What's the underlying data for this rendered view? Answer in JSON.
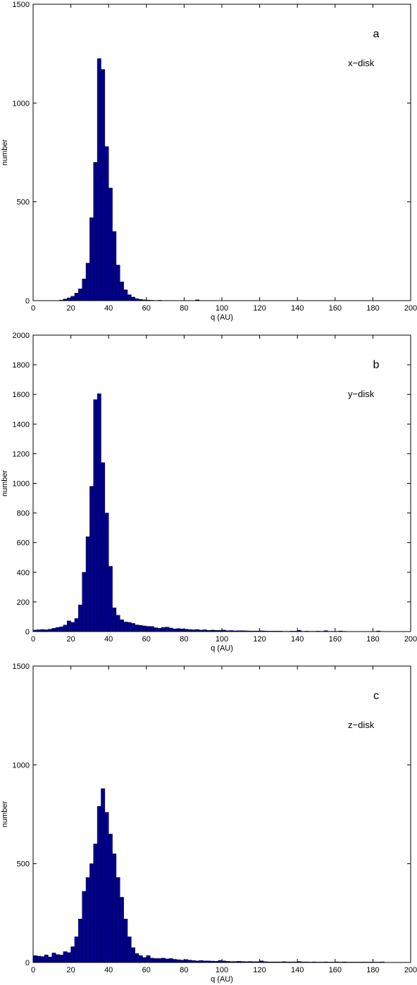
{
  "colors": {
    "bar_fill": "#00008B",
    "bar_edge": "#000033",
    "axis": "#000000",
    "background": "#ffffff"
  },
  "chart_data": [
    {
      "type": "bar",
      "panel_label": "a",
      "annotation": "x−disk",
      "xlabel": "q (AU)",
      "ylabel": "number",
      "xlim": [
        0,
        200
      ],
      "ylim": [
        0,
        1500
      ],
      "xticks": [
        0,
        20,
        40,
        60,
        80,
        100,
        120,
        140,
        160,
        180,
        200
      ],
      "yticks": [
        0,
        500,
        1000,
        1500
      ],
      "bin_width": 2,
      "bins": [
        [
          14,
          3
        ],
        [
          16,
          8
        ],
        [
          18,
          14
        ],
        [
          20,
          22
        ],
        [
          22,
          38
        ],
        [
          24,
          60
        ],
        [
          26,
          110
        ],
        [
          28,
          190
        ],
        [
          30,
          420
        ],
        [
          32,
          700
        ],
        [
          34,
          1225
        ],
        [
          36,
          1170
        ],
        [
          38,
          780
        ],
        [
          40,
          570
        ],
        [
          42,
          350
        ],
        [
          44,
          180
        ],
        [
          46,
          95
        ],
        [
          48,
          55
        ],
        [
          50,
          30
        ],
        [
          52,
          18
        ],
        [
          54,
          10
        ],
        [
          56,
          6
        ],
        [
          58,
          4
        ],
        [
          60,
          3
        ],
        [
          62,
          2
        ],
        [
          66,
          2
        ],
        [
          70,
          1
        ],
        [
          78,
          1
        ],
        [
          86,
          4
        ]
      ]
    },
    {
      "type": "bar",
      "panel_label": "b",
      "annotation": "y−disk",
      "xlabel": "q (AU)",
      "ylabel": "number",
      "xlim": [
        0,
        200
      ],
      "ylim": [
        0,
        2000
      ],
      "xticks": [
        0,
        20,
        40,
        60,
        80,
        100,
        120,
        140,
        160,
        180,
        200
      ],
      "yticks": [
        0,
        200,
        400,
        600,
        800,
        1000,
        1200,
        1400,
        1600,
        1800,
        2000
      ],
      "bin_width": 2,
      "bins": [
        [
          0,
          10
        ],
        [
          2,
          12
        ],
        [
          4,
          14
        ],
        [
          6,
          12
        ],
        [
          8,
          16
        ],
        [
          10,
          22
        ],
        [
          12,
          28
        ],
        [
          14,
          32
        ],
        [
          16,
          44
        ],
        [
          18,
          72
        ],
        [
          20,
          62
        ],
        [
          22,
          88
        ],
        [
          24,
          180
        ],
        [
          26,
          400
        ],
        [
          28,
          640
        ],
        [
          30,
          980
        ],
        [
          32,
          1565
        ],
        [
          34,
          1605
        ],
        [
          36,
          1140
        ],
        [
          38,
          800
        ],
        [
          40,
          440
        ],
        [
          42,
          160
        ],
        [
          44,
          110
        ],
        [
          46,
          80
        ],
        [
          48,
          65
        ],
        [
          50,
          62
        ],
        [
          52,
          55
        ],
        [
          54,
          45
        ],
        [
          56,
          42
        ],
        [
          58,
          38
        ],
        [
          60,
          35
        ],
        [
          62,
          34
        ],
        [
          64,
          26
        ],
        [
          66,
          22
        ],
        [
          68,
          28
        ],
        [
          70,
          30
        ],
        [
          72,
          24
        ],
        [
          74,
          18
        ],
        [
          76,
          20
        ],
        [
          78,
          18
        ],
        [
          80,
          16
        ],
        [
          82,
          14
        ],
        [
          84,
          12
        ],
        [
          86,
          14
        ],
        [
          88,
          10
        ],
        [
          90,
          12
        ],
        [
          92,
          8
        ],
        [
          94,
          10
        ],
        [
          96,
          8
        ],
        [
          98,
          8
        ],
        [
          100,
          10
        ],
        [
          102,
          6
        ],
        [
          104,
          7
        ],
        [
          106,
          5
        ],
        [
          108,
          6
        ],
        [
          110,
          6
        ],
        [
          112,
          5
        ],
        [
          114,
          4
        ],
        [
          116,
          4
        ],
        [
          118,
          4
        ],
        [
          120,
          5
        ],
        [
          122,
          4
        ],
        [
          124,
          3
        ],
        [
          126,
          3
        ],
        [
          128,
          3
        ],
        [
          130,
          3
        ],
        [
          132,
          2
        ],
        [
          134,
          2
        ],
        [
          136,
          3
        ],
        [
          138,
          3
        ],
        [
          140,
          8
        ],
        [
          142,
          2
        ],
        [
          144,
          3
        ],
        [
          146,
          2
        ],
        [
          148,
          2
        ],
        [
          150,
          3
        ],
        [
          152,
          2
        ],
        [
          154,
          6
        ],
        [
          156,
          2
        ],
        [
          158,
          2
        ],
        [
          160,
          2
        ],
        [
          162,
          4
        ],
        [
          164,
          2
        ],
        [
          166,
          1
        ],
        [
          168,
          1
        ],
        [
          170,
          1
        ],
        [
          172,
          1
        ],
        [
          174,
          1
        ],
        [
          176,
          1
        ],
        [
          178,
          1
        ],
        [
          180,
          1
        ],
        [
          182,
          4
        ],
        [
          184,
          1
        ],
        [
          186,
          1
        ],
        [
          188,
          1
        ],
        [
          190,
          1
        ],
        [
          192,
          1
        ],
        [
          194,
          1
        ],
        [
          196,
          1
        ],
        [
          198,
          1
        ]
      ]
    },
    {
      "type": "bar",
      "panel_label": "c",
      "annotation": "z−disk",
      "xlabel": "q (AU)",
      "ylabel": "number",
      "xlim": [
        0,
        200
      ],
      "ylim": [
        0,
        1500
      ],
      "xticks": [
        0,
        20,
        40,
        60,
        80,
        100,
        120,
        140,
        160,
        180,
        200
      ],
      "yticks": [
        0,
        500,
        1000,
        1500
      ],
      "bin_width": 2,
      "bins": [
        [
          0,
          35
        ],
        [
          2,
          32
        ],
        [
          4,
          30
        ],
        [
          6,
          38
        ],
        [
          8,
          28
        ],
        [
          10,
          48
        ],
        [
          12,
          40
        ],
        [
          14,
          38
        ],
        [
          16,
          55
        ],
        [
          18,
          50
        ],
        [
          20,
          80
        ],
        [
          22,
          130
        ],
        [
          24,
          220
        ],
        [
          26,
          360
        ],
        [
          28,
          430
        ],
        [
          30,
          500
        ],
        [
          32,
          600
        ],
        [
          34,
          790
        ],
        [
          36,
          880
        ],
        [
          38,
          760
        ],
        [
          40,
          650
        ],
        [
          42,
          550
        ],
        [
          44,
          430
        ],
        [
          46,
          330
        ],
        [
          48,
          220
        ],
        [
          50,
          130
        ],
        [
          52,
          75
        ],
        [
          54,
          45
        ],
        [
          56,
          35
        ],
        [
          58,
          25
        ],
        [
          60,
          35
        ],
        [
          62,
          22
        ],
        [
          64,
          20
        ],
        [
          66,
          20
        ],
        [
          68,
          22
        ],
        [
          70,
          18
        ],
        [
          72,
          20
        ],
        [
          74,
          16
        ],
        [
          76,
          14
        ],
        [
          78,
          12
        ],
        [
          80,
          15
        ],
        [
          82,
          12
        ],
        [
          84,
          10
        ],
        [
          86,
          8
        ],
        [
          88,
          10
        ],
        [
          90,
          8
        ],
        [
          92,
          8
        ],
        [
          94,
          7
        ],
        [
          96,
          6
        ],
        [
          98,
          10
        ],
        [
          100,
          8
        ],
        [
          102,
          6
        ],
        [
          104,
          5
        ],
        [
          106,
          5
        ],
        [
          108,
          6
        ],
        [
          110,
          5
        ],
        [
          112,
          4
        ],
        [
          114,
          5
        ],
        [
          116,
          4
        ],
        [
          118,
          4
        ],
        [
          120,
          8
        ],
        [
          122,
          4
        ],
        [
          124,
          3
        ],
        [
          126,
          3
        ],
        [
          128,
          3
        ],
        [
          130,
          3
        ],
        [
          132,
          4
        ],
        [
          134,
          3
        ],
        [
          136,
          3
        ],
        [
          138,
          3
        ],
        [
          140,
          5
        ],
        [
          142,
          3
        ],
        [
          144,
          3
        ],
        [
          146,
          2
        ],
        [
          148,
          3
        ],
        [
          150,
          2
        ],
        [
          152,
          2
        ],
        [
          154,
          3
        ],
        [
          156,
          2
        ],
        [
          158,
          2
        ],
        [
          160,
          3
        ],
        [
          162,
          2
        ],
        [
          164,
          3
        ],
        [
          166,
          2
        ],
        [
          168,
          2
        ],
        [
          170,
          2
        ],
        [
          172,
          2
        ],
        [
          174,
          2
        ],
        [
          176,
          2
        ],
        [
          178,
          2
        ],
        [
          180,
          2
        ],
        [
          182,
          2
        ],
        [
          184,
          3
        ],
        [
          186,
          1
        ],
        [
          188,
          1
        ],
        [
          190,
          1
        ],
        [
          192,
          1
        ],
        [
          194,
          1
        ],
        [
          196,
          1
        ],
        [
          198,
          1
        ]
      ]
    }
  ]
}
